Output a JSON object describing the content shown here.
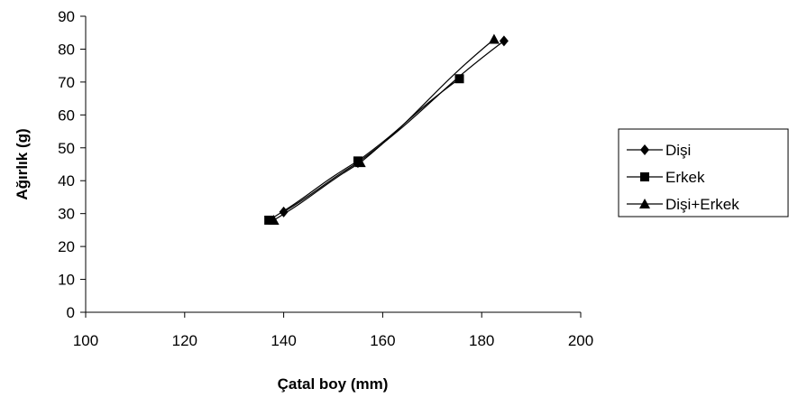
{
  "chart_data": {
    "type": "line",
    "xlabel": "Çatal boy (mm)",
    "ylabel": "Ağırlık (g)",
    "xlim": [
      100,
      200
    ],
    "ylim": [
      0,
      90
    ],
    "xticks": [
      100,
      120,
      140,
      160,
      180,
      200
    ],
    "yticks": [
      0,
      10,
      20,
      30,
      40,
      50,
      60,
      70,
      80,
      90
    ],
    "grid": false,
    "legend_position": "right",
    "series": [
      {
        "name": "Dişi",
        "marker": "diamond",
        "color": "#000000",
        "x": [
          140,
          155,
          184.5
        ],
        "y": [
          30.5,
          45.5,
          82.5
        ]
      },
      {
        "name": "Erkek",
        "marker": "square",
        "color": "#000000",
        "x": [
          137,
          155,
          175.5
        ],
        "y": [
          28,
          46,
          71
        ]
      },
      {
        "name": "Dişi+Erkek",
        "marker": "triangle",
        "color": "#000000",
        "x": [
          138,
          155.5,
          182.5
        ],
        "y": [
          28,
          45.5,
          83
        ]
      }
    ]
  }
}
